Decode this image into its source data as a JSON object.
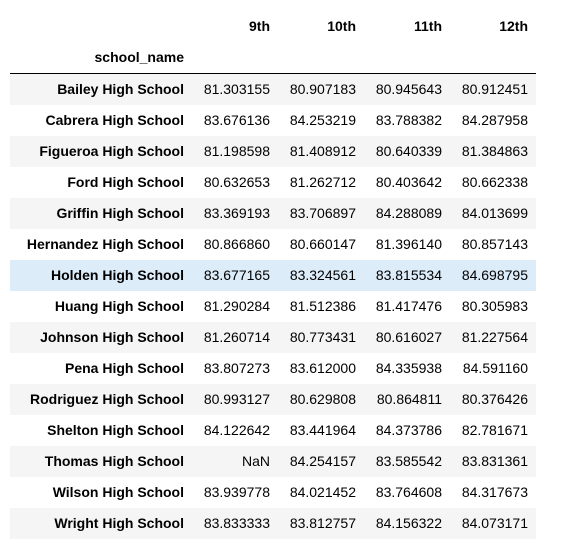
{
  "table": {
    "columns": [
      "9th",
      "10th",
      "11th",
      "12th"
    ],
    "index_name": "school_name",
    "rows": [
      {
        "school": "Bailey High School",
        "values": [
          "81.303155",
          "80.907183",
          "80.945643",
          "80.912451"
        ]
      },
      {
        "school": "Cabrera High School",
        "values": [
          "83.676136",
          "84.253219",
          "83.788382",
          "84.287958"
        ]
      },
      {
        "school": "Figueroa High School",
        "values": [
          "81.198598",
          "81.408912",
          "80.640339",
          "81.384863"
        ]
      },
      {
        "school": "Ford High School",
        "values": [
          "80.632653",
          "81.262712",
          "80.403642",
          "80.662338"
        ]
      },
      {
        "school": "Griffin High School",
        "values": [
          "83.369193",
          "83.706897",
          "84.288089",
          "84.013699"
        ]
      },
      {
        "school": "Hernandez High School",
        "values": [
          "80.866860",
          "80.660147",
          "81.396140",
          "80.857143"
        ]
      },
      {
        "school": "Holden High School",
        "values": [
          "83.677165",
          "83.324561",
          "83.815534",
          "84.698795"
        ]
      },
      {
        "school": "Huang High School",
        "values": [
          "81.290284",
          "81.512386",
          "81.417476",
          "80.305983"
        ]
      },
      {
        "school": "Johnson High School",
        "values": [
          "81.260714",
          "80.773431",
          "80.616027",
          "81.227564"
        ]
      },
      {
        "school": "Pena High School",
        "values": [
          "83.807273",
          "83.612000",
          "84.335938",
          "84.591160"
        ]
      },
      {
        "school": "Rodriguez High School",
        "values": [
          "80.993127",
          "80.629808",
          "80.864811",
          "80.376426"
        ]
      },
      {
        "school": "Shelton High School",
        "values": [
          "84.122642",
          "83.441964",
          "84.373786",
          "82.781671"
        ]
      },
      {
        "school": "Thomas High School",
        "values": [
          "NaN",
          "84.254157",
          "83.585542",
          "83.831361"
        ]
      },
      {
        "school": "Wilson High School",
        "values": [
          "83.939778",
          "84.021452",
          "83.764608",
          "84.317673"
        ]
      },
      {
        "school": "Wright High School",
        "values": [
          "83.833333",
          "83.812757",
          "84.156322",
          "84.073171"
        ]
      }
    ],
    "hovered_school": "Holden High School"
  },
  "colors": {
    "stripe": "#f5f5f5",
    "hover": "#dcecf9",
    "rule": "#000000"
  }
}
